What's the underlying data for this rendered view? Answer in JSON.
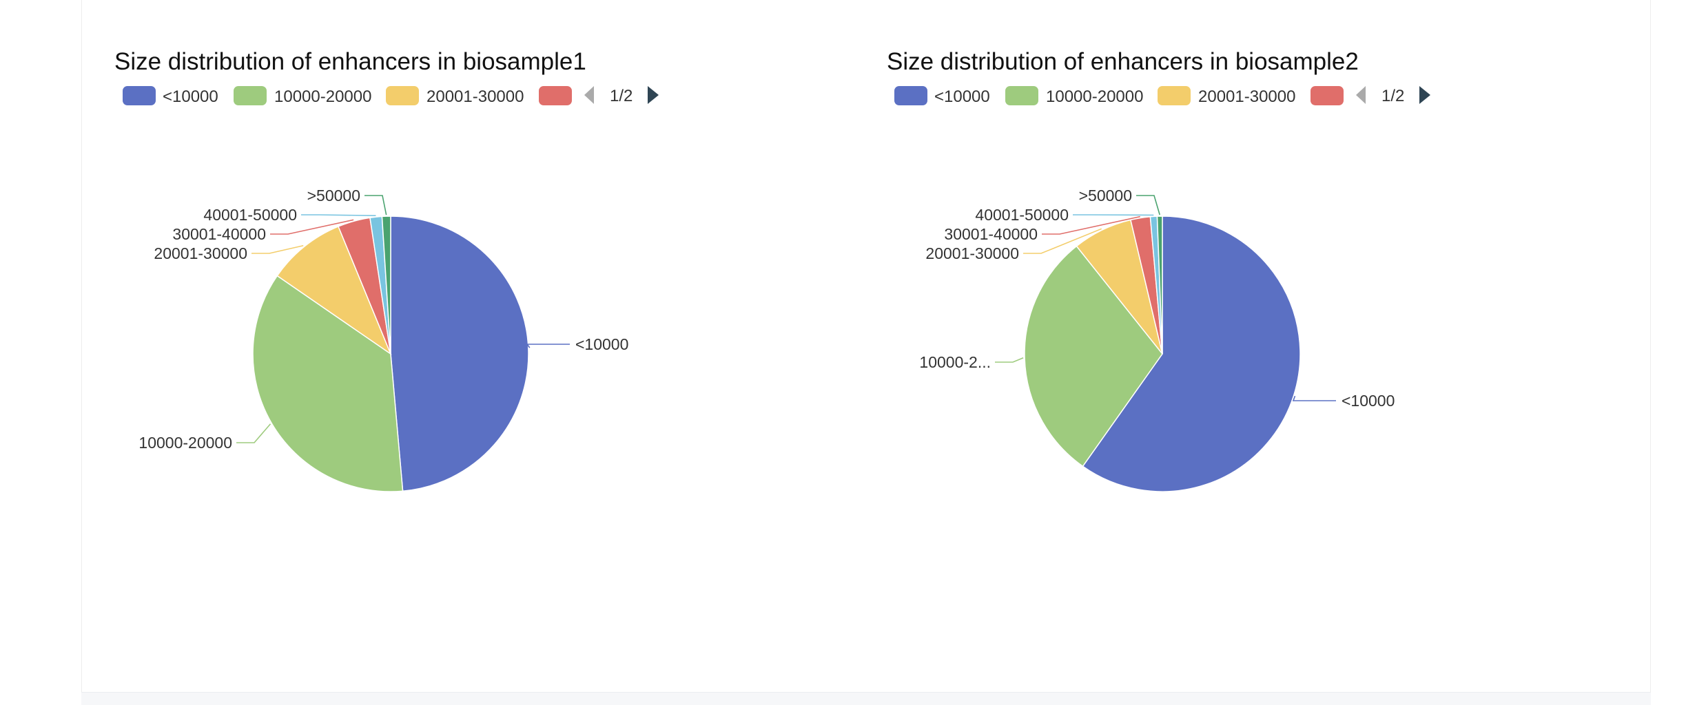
{
  "charts": [
    {
      "title": "Size distribution of enhancers in biosample1",
      "pager": "1/2",
      "legend_visible": [
        "<10000",
        "10000-20000",
        "20001-30000",
        ""
      ],
      "callout_labels": [
        "<10000",
        "10000-20000",
        "20001-30000",
        "30001-40000",
        "40001-50000",
        ">50000"
      ]
    },
    {
      "title": "Size distribution of enhancers in biosample2",
      "pager": "1/2",
      "legend_visible": [
        "<10000",
        "10000-20000",
        "20001-30000",
        ""
      ],
      "callout_labels": [
        "<10000",
        "10000-2...",
        "20001-30000",
        "30001-40000",
        "40001-50000",
        ">50000"
      ]
    }
  ],
  "chart_data": [
    {
      "type": "pie",
      "title": "Size distribution of enhancers in biosample1",
      "categories": [
        "<10000",
        "10000-20000",
        "20001-30000",
        "30001-40000",
        "40001-50000",
        ">50000"
      ],
      "values": [
        48.6,
        36.0,
        9.2,
        3.8,
        1.4,
        1.0
      ],
      "colors": [
        "#5b70c3",
        "#9ecb7e",
        "#f3cd6b",
        "#e06e6a",
        "#79c4e0",
        "#4aa36f"
      ],
      "legend_position": "top-left",
      "legend_paged": true
    },
    {
      "type": "pie",
      "title": "Size distribution of enhancers in biosample2",
      "categories": [
        "<10000",
        "10000-20000",
        "20001-30000",
        "30001-40000",
        "40001-50000",
        ">50000"
      ],
      "values": [
        59.8,
        29.5,
        7.0,
        2.3,
        0.8,
        0.6
      ],
      "colors": [
        "#5b70c3",
        "#9ecb7e",
        "#f3cd6b",
        "#e06e6a",
        "#79c4e0",
        "#4aa36f"
      ],
      "legend_position": "top-left",
      "legend_paged": true
    }
  ]
}
